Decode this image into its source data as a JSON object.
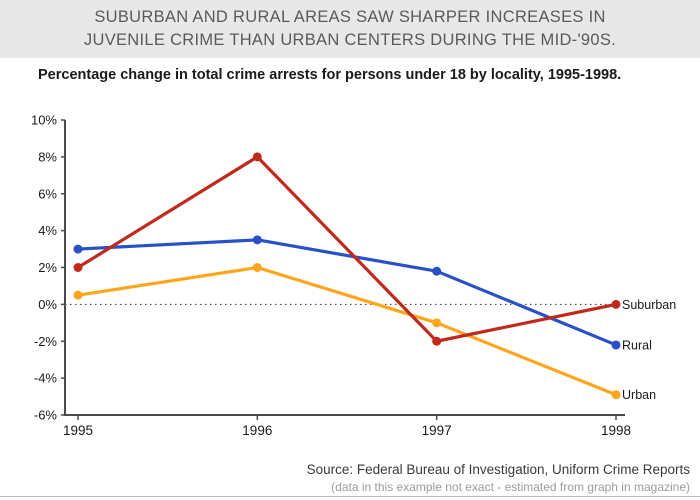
{
  "banner": {
    "title_line1": "SUBURBAN AND RURAL AREAS SAW SHARPER INCREASES IN",
    "title_line2": "JUVENILE CRIME THAN URBAN CENTERS DURING THE MID-'90S."
  },
  "subtitle": "Percentage change in total crime arrests for persons under 18 by locality, 1995-1998.",
  "source": {
    "line1": "Source: Federal Bureau of Investigation, Uniform Crime Reports",
    "line2": "(data in this example not exact - estimated from graph in magazine)"
  },
  "chart_data": {
    "type": "line",
    "categories": [
      "1995",
      "1996",
      "1997",
      "1998"
    ],
    "series": [
      {
        "name": "Suburban",
        "color": "#c02a1c",
        "values": [
          2.0,
          8.0,
          -2.0,
          0.0
        ]
      },
      {
        "name": "Rural",
        "color": "#2a50c8",
        "values": [
          3.0,
          3.5,
          1.8,
          -2.2
        ]
      },
      {
        "name": "Urban",
        "color": "#ffa51c",
        "values": [
          0.5,
          2.0,
          -1.0,
          -4.9
        ]
      }
    ],
    "ylim": [
      -6,
      10
    ],
    "ytick_step": 2,
    "ytick_labels": [
      "10%",
      "8%",
      "6%",
      "4%",
      "2%",
      "0%",
      "-2%",
      "-4%",
      "-6%"
    ],
    "zero_baseline": "dotted",
    "grid": false,
    "legend_position": "right-end-labels",
    "axis_color": "#4a4a4a",
    "marker": "circle"
  }
}
